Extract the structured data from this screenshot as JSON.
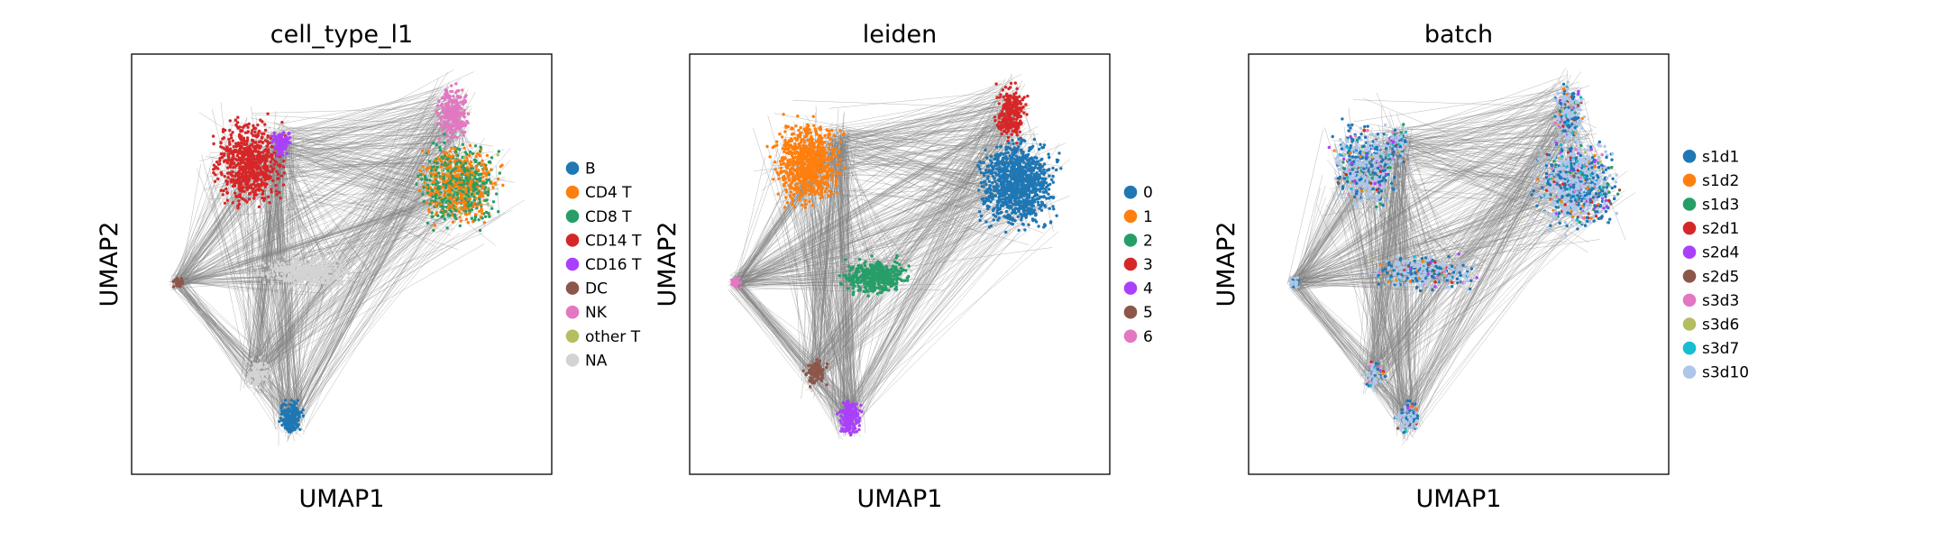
{
  "chart_data": [
    {
      "type": "scatter",
      "title": "cell_type_l1",
      "xlabel": "UMAP1",
      "ylabel": "UMAP2",
      "grid": false,
      "ticks_visible": false,
      "legend_placement": "right",
      "edges_color": "#7f7f7f",
      "legend": [
        {
          "label": "B",
          "color": "#1f77b4"
        },
        {
          "label": "CD4 T",
          "color": "#ff7f0e"
        },
        {
          "label": "CD8 T",
          "color": "#279e68"
        },
        {
          "label": "CD14 T",
          "color": "#d62728"
        },
        {
          "label": "CD16 T",
          "color": "#aa40fc"
        },
        {
          "label": "DC",
          "color": "#8c564b"
        },
        {
          "label": "NK",
          "color": "#e377c2"
        },
        {
          "label": "other T",
          "color": "#b5bd61"
        },
        {
          "label": "NA",
          "color": "#d3d3d3"
        }
      ]
    },
    {
      "type": "scatter",
      "title": "leiden",
      "xlabel": "UMAP1",
      "ylabel": "UMAP2",
      "grid": false,
      "ticks_visible": false,
      "legend_placement": "right",
      "edges_color": "#7f7f7f",
      "legend": [
        {
          "label": "0",
          "color": "#1f77b4"
        },
        {
          "label": "1",
          "color": "#ff7f0e"
        },
        {
          "label": "2",
          "color": "#279e68"
        },
        {
          "label": "3",
          "color": "#d62728"
        },
        {
          "label": "4",
          "color": "#aa40fc"
        },
        {
          "label": "5",
          "color": "#8c564b"
        },
        {
          "label": "6",
          "color": "#e377c2"
        }
      ]
    },
    {
      "type": "scatter",
      "title": "batch",
      "xlabel": "UMAP1",
      "ylabel": "UMAP2",
      "grid": false,
      "ticks_visible": false,
      "legend_placement": "right",
      "edges_color": "#7f7f7f",
      "legend": [
        {
          "label": "s1d1",
          "color": "#1f77b4"
        },
        {
          "label": "s1d2",
          "color": "#ff7f0e"
        },
        {
          "label": "s1d3",
          "color": "#279e68"
        },
        {
          "label": "s2d1",
          "color": "#d62728"
        },
        {
          "label": "s2d4",
          "color": "#aa40fc"
        },
        {
          "label": "s2d5",
          "color": "#8c564b"
        },
        {
          "label": "s3d3",
          "color": "#e377c2"
        },
        {
          "label": "s3d6",
          "color": "#b5bd61"
        },
        {
          "label": "s3d7",
          "color": "#17becf"
        },
        {
          "label": "s3d10",
          "color": "#aec7e8"
        }
      ]
    }
  ]
}
